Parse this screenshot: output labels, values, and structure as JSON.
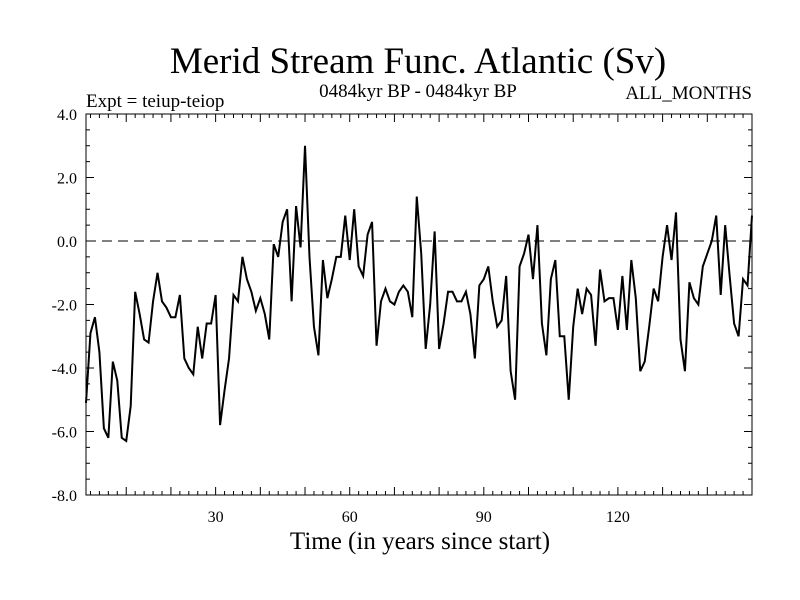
{
  "chart_data": {
    "type": "line",
    "title": "Merid Stream Func. Atlantic (Sv)",
    "subtitle_left": "Expt = teiup-teiop",
    "subtitle_center": "0484kyr BP - 0484kyr BP",
    "subtitle_right": "ALL_MONTHS",
    "xlabel": "Time (in years since start)",
    "ylabel": "",
    "xlim": [
      1,
      150
    ],
    "ylim": [
      -8.0,
      4.0
    ],
    "x_ticks": [
      30,
      60,
      90,
      120
    ],
    "x_tick_labels": [
      "30",
      "60",
      "90",
      "120"
    ],
    "y_ticks": [
      -8.0,
      -6.0,
      -4.0,
      -2.0,
      0.0,
      2.0,
      4.0
    ],
    "y_tick_labels": [
      "-8.0",
      "-6.0",
      "-4.0",
      "-2.0",
      "0.0",
      "2.0",
      "4.0"
    ],
    "zero_line": 0.0,
    "series": [
      {
        "name": "Merid Stream Func.",
        "x": [
          1,
          2,
          3,
          4,
          5,
          6,
          7,
          8,
          9,
          10,
          11,
          12,
          13,
          14,
          15,
          16,
          17,
          18,
          19,
          20,
          21,
          22,
          23,
          24,
          25,
          26,
          27,
          28,
          29,
          30,
          31,
          32,
          33,
          34,
          35,
          36,
          37,
          38,
          39,
          40,
          41,
          42,
          43,
          44,
          45,
          46,
          47,
          48,
          49,
          50,
          51,
          52,
          53,
          54,
          55,
          56,
          57,
          58,
          59,
          60,
          61,
          62,
          63,
          64,
          65,
          66,
          67,
          68,
          69,
          70,
          71,
          72,
          73,
          74,
          75,
          76,
          77,
          78,
          79,
          80,
          81,
          82,
          83,
          84,
          85,
          86,
          87,
          88,
          89,
          90,
          91,
          92,
          93,
          94,
          95,
          96,
          97,
          98,
          99,
          100,
          101,
          102,
          103,
          104,
          105,
          106,
          107,
          108,
          109,
          110,
          111,
          112,
          113,
          114,
          115,
          116,
          117,
          118,
          119,
          120,
          121,
          122,
          123,
          124,
          125,
          126,
          127,
          128,
          129,
          130,
          131,
          132,
          133,
          134,
          135,
          136,
          137,
          138,
          139,
          140,
          141,
          142,
          143,
          144,
          145,
          146,
          147,
          148,
          149,
          150
        ],
        "values": [
          -5.1,
          -2.9,
          -2.4,
          -3.5,
          -5.9,
          -6.2,
          -3.8,
          -4.4,
          -6.2,
          -6.3,
          -5.2,
          -1.6,
          -2.3,
          -3.1,
          -3.2,
          -1.9,
          -1.0,
          -1.9,
          -2.1,
          -2.4,
          -2.4,
          -1.7,
          -3.7,
          -4.0,
          -4.2,
          -2.7,
          -3.7,
          -2.6,
          -2.6,
          -1.7,
          -5.8,
          -4.7,
          -3.7,
          -1.7,
          -1.9,
          -0.5,
          -1.2,
          -1.6,
          -2.2,
          -1.8,
          -2.3,
          -3.1,
          -0.1,
          -0.5,
          0.6,
          1.0,
          -1.9,
          1.1,
          -0.2,
          3.0,
          -0.5,
          -2.7,
          -3.6,
          -0.6,
          -1.8,
          -1.2,
          -0.5,
          -0.5,
          0.8,
          -0.6,
          1.0,
          -0.8,
          -1.1,
          0.2,
          0.6,
          -3.3,
          -1.9,
          -1.5,
          -1.9,
          -2.0,
          -1.6,
          -1.4,
          -1.6,
          -2.4,
          1.4,
          -0.4,
          -3.4,
          -2.0,
          0.3,
          -3.4,
          -2.6,
          -1.6,
          -1.6,
          -1.9,
          -1.9,
          -1.6,
          -2.3,
          -3.7,
          -1.4,
          -1.2,
          -0.8,
          -1.9,
          -2.7,
          -2.5,
          -1.1,
          -4.1,
          -5.0,
          -0.8,
          -0.4,
          0.2,
          -1.2,
          0.5,
          -2.6,
          -3.6,
          -1.2,
          -0.6,
          -3.0,
          -3.0,
          -5.0,
          -2.7,
          -1.5,
          -2.3,
          -1.5,
          -1.7,
          -3.3,
          -0.9,
          -1.9,
          -1.8,
          -1.8,
          -2.8,
          -1.1,
          -2.8,
          -0.6,
          -1.8,
          -4.1,
          -3.8,
          -2.7,
          -1.5,
          -1.9,
          -0.5,
          0.5,
          -0.6,
          0.9,
          -3.1,
          -4.1,
          -1.3,
          -1.8,
          -2.0,
          -0.8,
          -0.4,
          0.0,
          0.8,
          -1.7,
          0.5,
          -1.1,
          -2.6,
          -3.0,
          -1.2,
          -1.4,
          0.8
        ]
      }
    ]
  }
}
